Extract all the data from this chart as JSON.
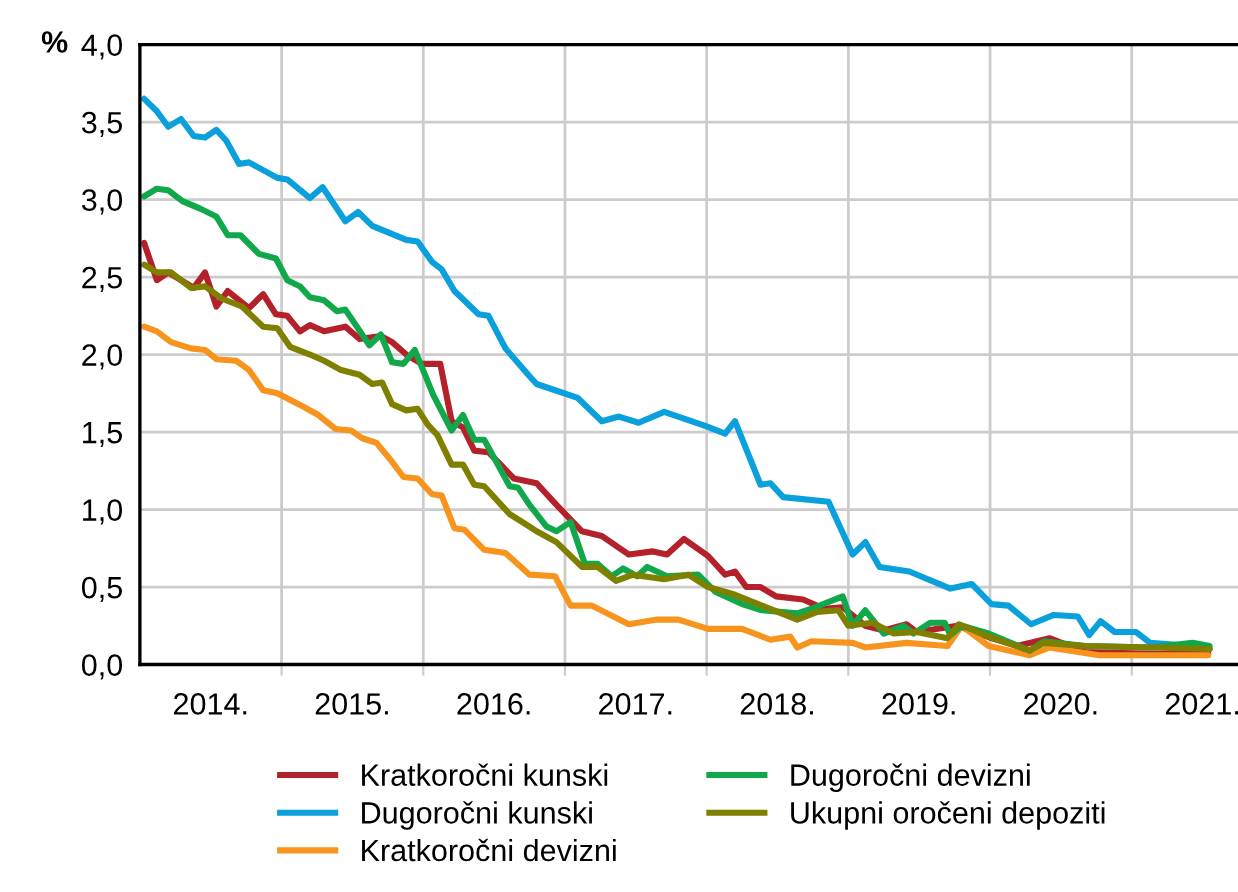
{
  "chart_data": {
    "type": "line",
    "ylabel": "%",
    "xlim": [
      2014,
      2021.75
    ],
    "ylim": [
      0,
      4.0
    ],
    "xticks": [
      {
        "value": 2015,
        "label": null
      },
      {
        "value": 2016,
        "label": null
      },
      {
        "value": 2017,
        "label": null
      },
      {
        "value": 2018,
        "label": null
      },
      {
        "value": 2019,
        "label": null
      },
      {
        "value": 2020,
        "label": null
      },
      {
        "value": 2021,
        "label": null
      },
      {
        "value": 2014.5,
        "label": "2014."
      },
      {
        "value": 2015.5,
        "label": "2015."
      },
      {
        "value": 2016.5,
        "label": "2016."
      },
      {
        "value": 2017.5,
        "label": "2017."
      },
      {
        "value": 2018.5,
        "label": "2018."
      },
      {
        "value": 2019.5,
        "label": "2019."
      },
      {
        "value": 2020.5,
        "label": "2020."
      },
      {
        "value": 2021.5,
        "label": "2021."
      }
    ],
    "yticks": [
      {
        "value": 0,
        "label": "0,0"
      },
      {
        "value": 0.5,
        "label": "0,5"
      },
      {
        "value": 1.0,
        "label": "1,0"
      },
      {
        "value": 1.5,
        "label": "1,5"
      },
      {
        "value": 2.0,
        "label": "2,0"
      },
      {
        "value": 2.5,
        "label": "2,5"
      },
      {
        "value": 3.0,
        "label": "3,0"
      },
      {
        "value": 3.5,
        "label": "3,5"
      },
      {
        "value": 4.0,
        "label": "4,0"
      }
    ],
    "grid": true,
    "legend": "bottom",
    "marker": "none",
    "line_style": "solid",
    "series": [
      {
        "name": "Kratkoročni kunski",
        "color": "#b5212b",
        "x": [
          2014.03,
          2014.12,
          2014.2,
          2014.29,
          2014.38,
          2014.46,
          2014.54,
          2014.62,
          2014.77,
          2014.87,
          2014.96,
          2015.04,
          2015.13,
          2015.2,
          2015.3,
          2015.45,
          2015.55,
          2015.7,
          2015.78,
          2015.88,
          2015.99,
          2016.12,
          2016.2,
          2016.28,
          2016.36,
          2016.46,
          2016.64,
          2016.75,
          2016.8,
          2016.94,
          2017.12,
          2017.26,
          2017.45,
          2017.62,
          2017.72,
          2017.84,
          2018.01,
          2018.13,
          2018.2,
          2018.28,
          2018.38,
          2018.49,
          2018.68,
          2018.83,
          2018.96,
          2019.12,
          2019.25,
          2019.41,
          2019.48,
          2019.77,
          2020.01,
          2020.19,
          2020.42,
          2020.67,
          2021.14,
          2021.54
        ],
        "values": [
          2.72,
          2.48,
          2.53,
          2.48,
          2.43,
          2.53,
          2.31,
          2.41,
          2.3,
          2.39,
          2.26,
          2.25,
          2.15,
          2.19,
          2.15,
          2.18,
          2.1,
          2.12,
          2.08,
          2.0,
          1.94,
          1.94,
          1.57,
          1.53,
          1.38,
          1.37,
          1.2,
          1.18,
          1.17,
          1.03,
          0.86,
          0.83,
          0.71,
          0.73,
          0.71,
          0.81,
          0.7,
          0.58,
          0.6,
          0.5,
          0.5,
          0.44,
          0.42,
          0.36,
          0.37,
          0.25,
          0.22,
          0.26,
          0.21,
          0.25,
          0.17,
          0.12,
          0.17,
          0.08,
          0.07,
          0.07
        ]
      },
      {
        "name": "Dugoročni kunski",
        "color": "#0aa0dc",
        "x": [
          2014.03,
          2014.12,
          2014.2,
          2014.29,
          2014.38,
          2014.46,
          2014.54,
          2014.61,
          2014.7,
          2014.77,
          2014.97,
          2015.04,
          2015.2,
          2015.29,
          2015.45,
          2015.54,
          2015.64,
          2015.88,
          2015.96,
          2016.06,
          2016.13,
          2016.22,
          2016.39,
          2016.46,
          2016.58,
          2016.75,
          2016.8,
          2017.09,
          2017.26,
          2017.38,
          2017.52,
          2017.7,
          2017.99,
          2018.13,
          2018.2,
          2018.38,
          2018.45,
          2018.54,
          2018.86,
          2019.03,
          2019.12,
          2019.22,
          2019.43,
          2019.72,
          2019.87,
          2020.01,
          2020.13,
          2020.29,
          2020.45,
          2020.62,
          2020.7,
          2020.78,
          2020.88,
          2021.03,
          2021.13,
          2021.42,
          2021.55
        ],
        "values": [
          3.65,
          3.57,
          3.47,
          3.52,
          3.41,
          3.4,
          3.45,
          3.38,
          3.23,
          3.24,
          3.14,
          3.13,
          3.01,
          3.08,
          2.86,
          2.92,
          2.83,
          2.74,
          2.73,
          2.6,
          2.55,
          2.41,
          2.26,
          2.25,
          2.04,
          1.86,
          1.81,
          1.72,
          1.57,
          1.6,
          1.56,
          1.63,
          1.54,
          1.49,
          1.57,
          1.16,
          1.17,
          1.08,
          1.05,
          0.71,
          0.79,
          0.63,
          0.6,
          0.49,
          0.52,
          0.39,
          0.38,
          0.26,
          0.32,
          0.31,
          0.19,
          0.28,
          0.21,
          0.21,
          0.14,
          0.12,
          0.1
        ]
      },
      {
        "name": "Kratkoročni devizni",
        "color": "#f7941d",
        "x": [
          2014.03,
          2014.12,
          2014.22,
          2014.36,
          2014.46,
          2014.54,
          2014.68,
          2014.77,
          2014.87,
          2014.97,
          2015.12,
          2015.26,
          2015.38,
          2015.49,
          2015.57,
          2015.67,
          2015.77,
          2015.86,
          2015.96,
          2016.06,
          2016.13,
          2016.22,
          2016.29,
          2016.43,
          2016.58,
          2016.75,
          2016.93,
          2017.04,
          2017.19,
          2017.45,
          2017.65,
          2017.8,
          2018.01,
          2018.25,
          2018.45,
          2018.59,
          2018.64,
          2018.74,
          2019.03,
          2019.12,
          2019.41,
          2019.7,
          2019.8,
          2019.99,
          2020.28,
          2020.42,
          2020.77,
          2021.54
        ],
        "values": [
          2.18,
          2.15,
          2.08,
          2.04,
          2.03,
          1.97,
          1.96,
          1.9,
          1.77,
          1.75,
          1.68,
          1.61,
          1.52,
          1.51,
          1.46,
          1.43,
          1.32,
          1.21,
          1.2,
          1.1,
          1.09,
          0.88,
          0.87,
          0.74,
          0.72,
          0.58,
          0.57,
          0.38,
          0.38,
          0.26,
          0.29,
          0.29,
          0.23,
          0.23,
          0.16,
          0.18,
          0.11,
          0.15,
          0.14,
          0.11,
          0.14,
          0.12,
          0.25,
          0.12,
          0.06,
          0.11,
          0.06,
          0.06
        ]
      },
      {
        "name": "Dugoročni devizni",
        "color": "#10a84a",
        "x": [
          2014.03,
          2014.12,
          2014.2,
          2014.3,
          2014.43,
          2014.54,
          2014.62,
          2014.71,
          2014.84,
          2014.96,
          2015.04,
          2015.13,
          2015.2,
          2015.3,
          2015.39,
          2015.45,
          2015.62,
          2015.7,
          2015.78,
          2015.86,
          2015.94,
          2016.07,
          2016.2,
          2016.28,
          2016.36,
          2016.43,
          2016.61,
          2016.67,
          2016.75,
          2016.87,
          2016.94,
          2017.04,
          2017.14,
          2017.23,
          2017.33,
          2017.41,
          2017.51,
          2017.58,
          2017.72,
          2017.94,
          2018.06,
          2018.25,
          2018.39,
          2018.64,
          2018.74,
          2018.96,
          2019.03,
          2019.12,
          2019.25,
          2019.39,
          2019.46,
          2019.58,
          2019.68,
          2019.72,
          2019.8,
          2019.99,
          2020.28,
          2020.38,
          2020.67,
          2021.14,
          2021.43,
          2021.55
        ],
        "values": [
          3.02,
          3.07,
          3.06,
          2.99,
          2.94,
          2.89,
          2.77,
          2.77,
          2.65,
          2.62,
          2.48,
          2.44,
          2.37,
          2.35,
          2.28,
          2.29,
          2.06,
          2.13,
          1.95,
          1.94,
          2.03,
          1.74,
          1.51,
          1.61,
          1.45,
          1.45,
          1.15,
          1.14,
          1.03,
          0.89,
          0.86,
          0.92,
          0.65,
          0.65,
          0.57,
          0.62,
          0.57,
          0.63,
          0.57,
          0.58,
          0.47,
          0.39,
          0.35,
          0.33,
          0.36,
          0.44,
          0.25,
          0.35,
          0.2,
          0.25,
          0.2,
          0.27,
          0.27,
          0.19,
          0.25,
          0.2,
          0.09,
          0.15,
          0.12,
          0.11,
          0.14,
          0.12
        ]
      },
      {
        "name": "Ukupni oročeni depoziti",
        "color": "#808000",
        "x": [
          2014.03,
          2014.12,
          2014.22,
          2014.36,
          2014.46,
          2014.58,
          2014.72,
          2014.87,
          2014.97,
          2015.06,
          2015.2,
          2015.3,
          2015.42,
          2015.55,
          2015.64,
          2015.71,
          2015.78,
          2015.88,
          2015.96,
          2016.03,
          2016.1,
          2016.2,
          2016.28,
          2016.36,
          2016.43,
          2016.61,
          2016.75,
          2016.8,
          2016.94,
          2017.12,
          2017.23,
          2017.36,
          2017.48,
          2017.7,
          2017.87,
          2018.01,
          2018.2,
          2018.39,
          2018.64,
          2018.78,
          2018.93,
          2019.0,
          2019.17,
          2019.32,
          2019.48,
          2019.7,
          2019.78,
          2019.99,
          2020.28,
          2020.38,
          2020.67,
          2021.14,
          2021.55
        ],
        "values": [
          2.58,
          2.53,
          2.53,
          2.43,
          2.44,
          2.36,
          2.31,
          2.18,
          2.17,
          2.05,
          2.0,
          1.96,
          1.9,
          1.87,
          1.81,
          1.82,
          1.68,
          1.64,
          1.65,
          1.55,
          1.48,
          1.29,
          1.29,
          1.16,
          1.15,
          0.97,
          0.89,
          0.86,
          0.79,
          0.63,
          0.63,
          0.54,
          0.58,
          0.55,
          0.58,
          0.5,
          0.45,
          0.38,
          0.29,
          0.34,
          0.35,
          0.25,
          0.27,
          0.2,
          0.21,
          0.17,
          0.26,
          0.18,
          0.09,
          0.14,
          0.12,
          0.11,
          0.1
        ]
      }
    ]
  }
}
